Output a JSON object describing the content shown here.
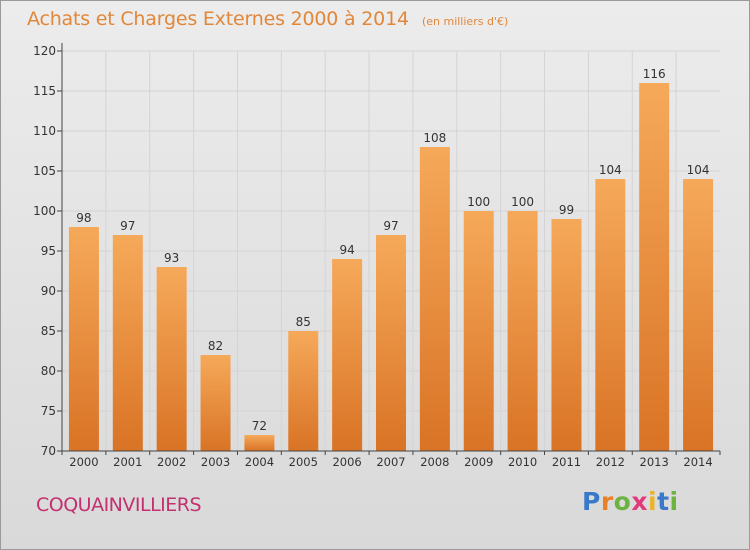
{
  "header": {
    "title": "Achats et Charges Externes 2000 à 2014",
    "subtitle": "(en milliers d'€)"
  },
  "footer": {
    "commune": "COQUAINVILLIERS",
    "brand_letters": [
      "P",
      "r",
      "o",
      "x",
      "i",
      "t",
      "i"
    ],
    "brand_colors": [
      "#3a79c9",
      "#e8802a",
      "#6db33f",
      "#e03a7a",
      "#e8b52a",
      "#3a79c9",
      "#6db33f"
    ]
  },
  "colors": {
    "bar_light": "#f6a95a",
    "bar_dark": "#d97325",
    "title": "#e1873a",
    "commune": "#c4306f",
    "grid": "#d4d4d4",
    "axis": "#444444"
  },
  "chart_data": {
    "type": "bar",
    "categories": [
      "2000",
      "2001",
      "2002",
      "2003",
      "2004",
      "2005",
      "2006",
      "2007",
      "2008",
      "2009",
      "2010",
      "2011",
      "2012",
      "2013",
      "2014"
    ],
    "values": [
      98,
      97,
      93,
      82,
      72,
      85,
      94,
      97,
      108,
      100,
      100,
      99,
      104,
      116,
      104
    ],
    "ylim": [
      70,
      120
    ],
    "yticks": [
      70,
      75,
      80,
      85,
      90,
      95,
      100,
      105,
      110,
      115,
      120
    ],
    "grid": true,
    "legend": "none",
    "data_labels": true
  }
}
